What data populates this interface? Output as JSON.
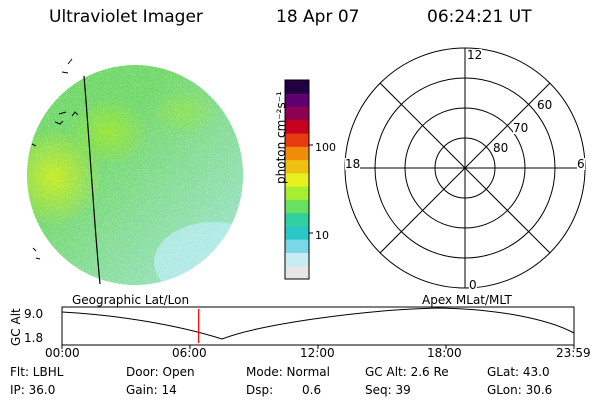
{
  "header": {
    "instrument": "Ultraviolet Imager",
    "date": "18 Apr 07",
    "time": "06:24:21 UT"
  },
  "colorbar": {
    "label": "photon cm⁻²s⁻¹",
    "ticks": [
      "100",
      "10"
    ],
    "colors": [
      "#e6e6e6",
      "#c8ecf2",
      "#78d8e8",
      "#2cc6c8",
      "#30d0a0",
      "#6ae060",
      "#a6ee30",
      "#e8f020",
      "#f0c010",
      "#f08c08",
      "#e83a10",
      "#c80020",
      "#900050",
      "#600070",
      "#200040"
    ]
  },
  "polar_plot": {
    "mlt_labels": {
      "top": "12",
      "left": "18",
      "right": "6",
      "bottom": "0"
    },
    "lat_labels": [
      "60",
      "70",
      "80"
    ]
  },
  "orbit_plot": {
    "left_caption": "Geographic Lat/Lon",
    "right_caption": "Apex MLat/MLT",
    "y_axis_label": "GC Alt",
    "y_ticks": [
      "9.0",
      "1.8"
    ],
    "x_ticks": [
      "00:00",
      "06:00",
      "12:00",
      "18:00",
      "23:59"
    ],
    "current_time_fraction": 0.2669,
    "marker_color": "#ff0000"
  },
  "status": {
    "row1": {
      "filter": "Flt: LBHL",
      "door": "Door: Open",
      "mode": "Mode: Normal",
      "gc_alt": "GC Alt: 2.6 Re",
      "glat": "GLat: 43.0"
    },
    "row2": {
      "ip": "IP: 36.0",
      "gain": "Gain: 14",
      "dsp_label": "Dsp:",
      "dsp_value": "0.6",
      "seq": "Seq: 39",
      "glon": "GLon: 30.6"
    }
  }
}
